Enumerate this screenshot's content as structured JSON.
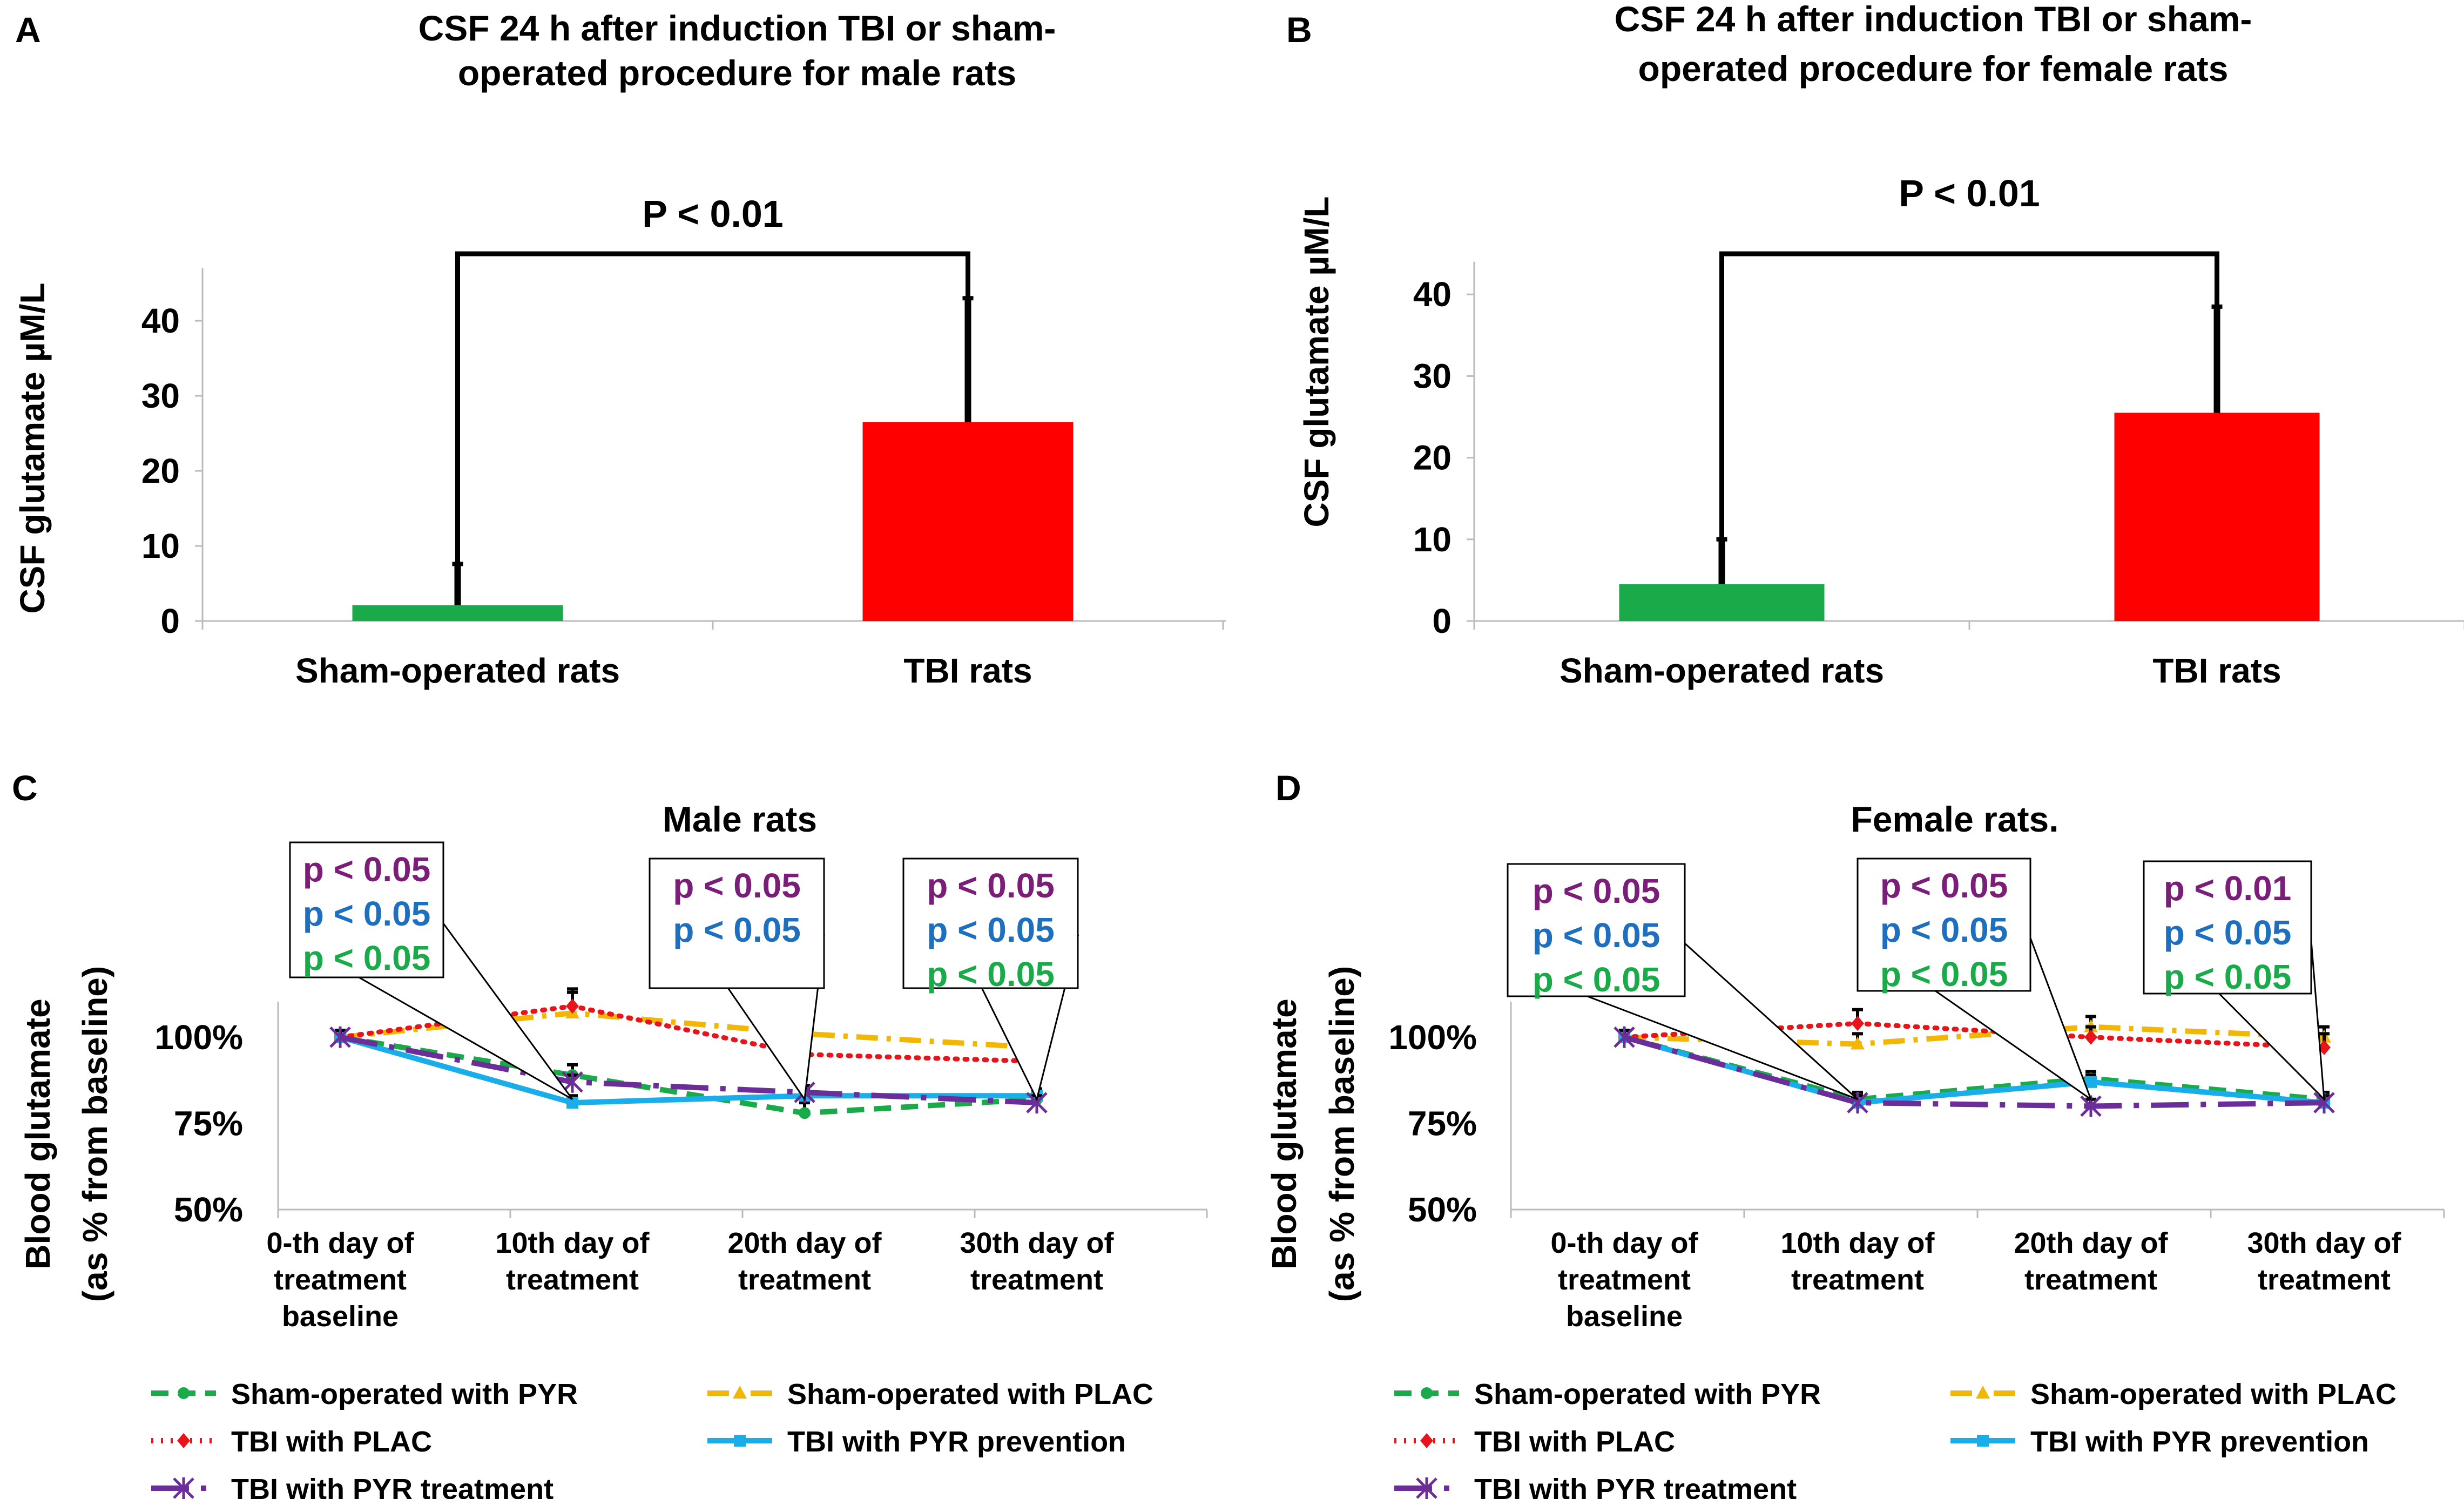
{
  "colors": {
    "green": "#1AAA4A",
    "gold": "#F2B705",
    "red": "#E8141B",
    "blue": "#19AEEA",
    "purple": "#6B2E98",
    "barGreen": "#1AAA4A",
    "barRed": "#FF0000",
    "pPurple": "#7B1E7A",
    "pBlue": "#1F6FBF",
    "pGreen": "#1AAA4A"
  },
  "chart_data": [
    {
      "panel": "A",
      "type": "bar",
      "title_lines": [
        "CSF 24 h  after induction TBI or sham-",
        "operated procedure for male rats"
      ],
      "ylabel": "CSF glutamate µM/L",
      "ylim": [
        0,
        47
      ],
      "yticks": [
        0,
        10,
        20,
        30,
        40
      ],
      "categories": [
        "Sham-operated rats",
        "TBI rats"
      ],
      "values": [
        2.1,
        26.5
      ],
      "errors": [
        5.5,
        16.5
      ],
      "significance": "P < 0.01"
    },
    {
      "panel": "B",
      "type": "bar",
      "title_lines": [
        "CSF 24 h  after induction TBI or sham-",
        "operated procedure for female rats"
      ],
      "ylabel": "CSF glutamate µM/L",
      "ylim": [
        0,
        44
      ],
      "yticks": [
        0,
        10,
        20,
        30,
        40
      ],
      "categories": [
        "Sham-operated rats",
        "TBI rats"
      ],
      "values": [
        4.5,
        25.5
      ],
      "errors": [
        5.5,
        13.0
      ],
      "significance": "P < 0.01"
    },
    {
      "panel": "C",
      "type": "line",
      "title": "Male rats",
      "ylabel_lines": [
        "Blood glutamate",
        "(as % from baseline)"
      ],
      "ylim": [
        50,
        115
      ],
      "yticks": [
        50,
        75,
        100
      ],
      "ytick_labels": [
        "50%",
        "75%",
        "100%"
      ],
      "categories": [
        [
          "0-th day of",
          "treatment",
          "baseline"
        ],
        [
          "10th day of",
          "treatment"
        ],
        [
          "20th day of",
          "treatment"
        ],
        [
          "30th day of",
          "treatment"
        ]
      ],
      "series": [
        {
          "name": "Sham-operated with PYR",
          "color": "green",
          "dash": "dash",
          "marker": "circle",
          "values": [
            100,
            89,
            78,
            82
          ],
          "errors": [
            2,
            3,
            3,
            3
          ]
        },
        {
          "name": "Sham-operated with PLAC",
          "color": "gold",
          "dash": "dashdot",
          "marker": "triangle",
          "values": [
            100,
            107,
            101,
            97
          ],
          "errors": [
            2,
            6,
            5,
            4
          ]
        },
        {
          "name": "TBI with PLAC",
          "color": "red",
          "dash": "dot",
          "marker": "diamond",
          "values": [
            100,
            109,
            95,
            93
          ],
          "errors": [
            2,
            5,
            4,
            5
          ]
        },
        {
          "name": "TBI with PYR prevention",
          "color": "blue",
          "dash": "solid",
          "marker": "square",
          "values": [
            100,
            81,
            83,
            83
          ],
          "errors": [
            2,
            2,
            2,
            2
          ]
        },
        {
          "name": "TBI with PYR treatment",
          "color": "purple",
          "dash": "longdash",
          "marker": "star",
          "values": [
            100,
            87,
            84,
            81
          ],
          "errors": [
            2,
            2,
            2,
            2
          ]
        }
      ],
      "annotations": [
        {
          "lines": [
            {
              "text": "p < 0.05",
              "color": "pPurple"
            },
            {
              "text": "p < 0.05",
              "color": "pBlue"
            },
            {
              "text": "p < 0.05",
              "color": "pGreen"
            }
          ],
          "pointer_x": 1
        },
        {
          "lines": [
            {
              "text": "p < 0.05",
              "color": "pPurple"
            },
            {
              "text": "p < 0.05",
              "color": "pBlue"
            }
          ],
          "pointer_x": 2
        },
        {
          "lines": [
            {
              "text": "p < 0.05",
              "color": "pPurple"
            },
            {
              "text": "p < 0.05",
              "color": "pBlue"
            },
            {
              "text": "p < 0.05",
              "color": "pGreen"
            }
          ],
          "pointer_x": 3
        }
      ]
    },
    {
      "panel": "D",
      "type": "line",
      "title": "Female rats.",
      "ylabel_lines": [
        "Blood glutamate",
        "(as % from baseline)"
      ],
      "ylim": [
        50,
        115
      ],
      "yticks": [
        50,
        75,
        100
      ],
      "ytick_labels": [
        "50%",
        "75%",
        "100%"
      ],
      "categories": [
        [
          "0-th day of",
          "treatment",
          "baseline"
        ],
        [
          "10th day of",
          "treatment"
        ],
        [
          "20th day of",
          "treatment"
        ],
        [
          "30th day of",
          "treatment"
        ]
      ],
      "series": [
        {
          "name": "Sham-operated with PYR",
          "color": "green",
          "dash": "dash",
          "marker": "circle",
          "values": [
            100,
            82,
            88,
            82
          ],
          "errors": [
            2,
            2,
            2,
            2
          ]
        },
        {
          "name": "Sham-operated with PLAC",
          "color": "gold",
          "dash": "dashdot",
          "marker": "triangle",
          "values": [
            100,
            98,
            103,
            100
          ],
          "errors": [
            2,
            3,
            3,
            3
          ]
        },
        {
          "name": "TBI with PLAC",
          "color": "red",
          "dash": "dot",
          "marker": "diamond",
          "values": [
            100,
            104,
            100,
            97
          ],
          "errors": [
            2,
            4,
            3,
            4
          ]
        },
        {
          "name": "TBI with PYR prevention",
          "color": "blue",
          "dash": "solid",
          "marker": "square",
          "values": [
            100,
            81,
            87,
            81
          ],
          "errors": [
            2,
            2,
            2,
            2
          ]
        },
        {
          "name": "TBI with PYR treatment",
          "color": "purple",
          "dash": "longdash",
          "marker": "star",
          "values": [
            100,
            81,
            80,
            81
          ],
          "errors": [
            2,
            2,
            2,
            2
          ]
        }
      ],
      "annotations": [
        {
          "lines": [
            {
              "text": "p < 0.05",
              "color": "pPurple"
            },
            {
              "text": "p < 0.05",
              "color": "pBlue"
            },
            {
              "text": "p < 0.05",
              "color": "pGreen"
            }
          ],
          "pointer_x": 1
        },
        {
          "lines": [
            {
              "text": "p < 0.05",
              "color": "pPurple"
            },
            {
              "text": "p < 0.05",
              "color": "pBlue"
            },
            {
              "text": "p < 0.05",
              "color": "pGreen"
            }
          ],
          "pointer_x": 2
        },
        {
          "lines": [
            {
              "text": "p < 0.01",
              "color": "pPurple"
            },
            {
              "text": "p < 0.05",
              "color": "pBlue"
            },
            {
              "text": "p < 0.05",
              "color": "pGreen"
            }
          ],
          "pointer_x": 3
        }
      ]
    }
  ]
}
